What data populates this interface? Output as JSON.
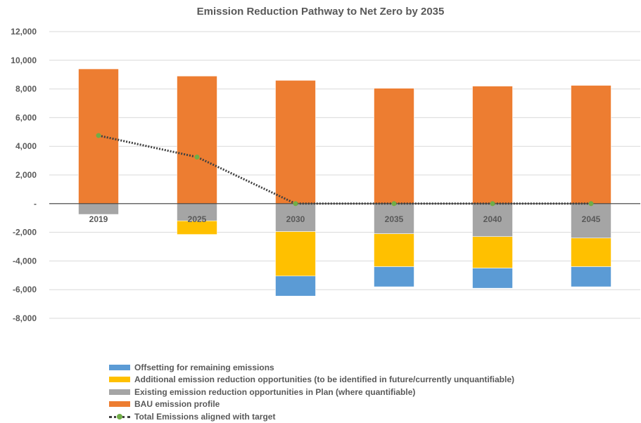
{
  "chart_data": {
    "type": "bar",
    "title": "Emission Reduction Pathway to Net Zero by 2035",
    "categories": [
      "2019",
      "2025",
      "2030",
      "2035",
      "2040",
      "2045"
    ],
    "y_ticks": [
      "12,000",
      "10,000",
      "8,000",
      "6,000",
      "4,000",
      "2,000",
      "-",
      "-2,000",
      "-4,000",
      "-6,000",
      "-8,000"
    ],
    "ylim": [
      -8000,
      12000
    ],
    "stacked": true,
    "series": [
      {
        "name": "Offsetting for remaining emissions",
        "color": "#5b9bd5",
        "values": [
          0,
          0,
          -1400,
          -1400,
          -1400,
          -1400
        ]
      },
      {
        "name": "Additional emission reduction opportunities (to be identified in future/currently unquantifiable)",
        "color": "#ffc000",
        "values": [
          0,
          -950,
          -3100,
          -2300,
          -2200,
          -2000
        ]
      },
      {
        "name": "Existing emission reduction opportunities in Plan (where quantifiable)",
        "color": "#a5a5a5",
        "values": [
          -750,
          -1200,
          -1950,
          -2100,
          -2300,
          -2400
        ]
      },
      {
        "name": "BAU emission profile",
        "color": "#ed7d31",
        "values": [
          9400,
          8900,
          8600,
          8050,
          8200,
          8250
        ]
      }
    ],
    "line": {
      "name": "Total Emissions aligned with target",
      "line_color": "#404040",
      "marker_color": "#70ad47",
      "values": [
        4750,
        3250,
        0,
        0,
        0,
        0
      ]
    },
    "grid": true,
    "legend_position": "bottom"
  }
}
